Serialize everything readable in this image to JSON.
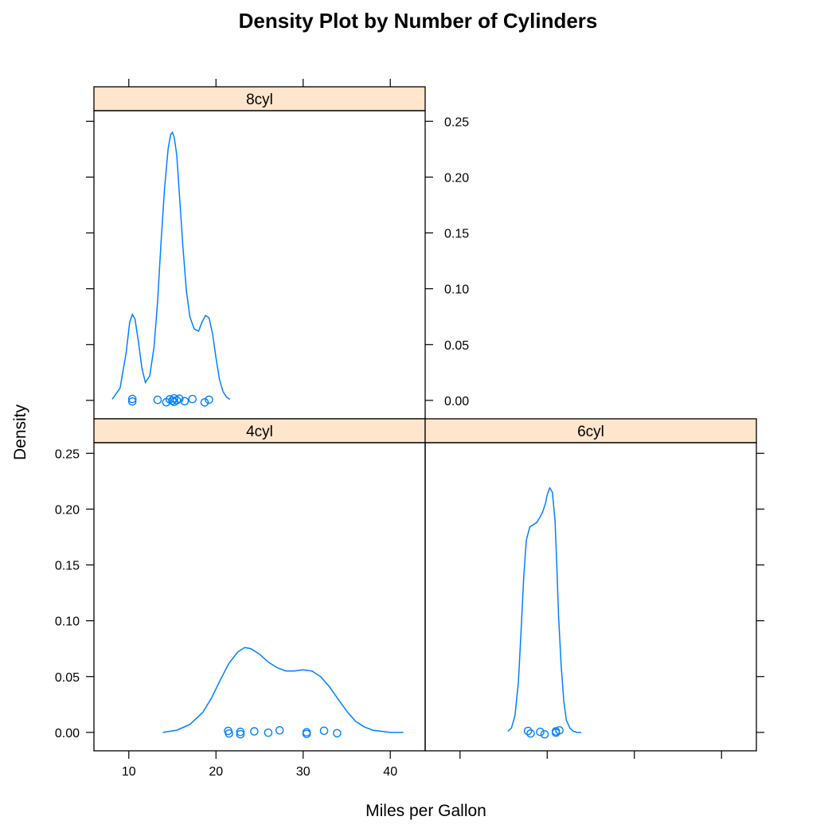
{
  "chart_data": {
    "type": "line",
    "title": "Density Plot by Number of Cylinders",
    "xlabel": "Miles per Gallon",
    "ylabel": "Density",
    "xlim": [
      6,
      44
    ],
    "ylim": [
      -0.0165,
      0.2595
    ],
    "x_ticks": [
      10,
      20,
      30,
      40
    ],
    "y_ticks": [
      0.0,
      0.05,
      0.1,
      0.15,
      0.2,
      0.25
    ],
    "y_tick_labels": [
      "0.00",
      "0.05",
      "0.10",
      "0.15",
      "0.20",
      "0.25"
    ],
    "x_tick_labels": [
      "10",
      "20",
      "30",
      "40"
    ],
    "line_color": "#0080ff",
    "strip_color": "#ffe5cc",
    "panels": [
      {
        "label": "8cyl",
        "density": {
          "x": [
            8.1,
            9.0,
            9.7,
            10.1,
            10.4,
            10.7,
            11.1,
            11.5,
            11.9,
            12.4,
            12.9,
            13.3,
            13.7,
            14.1,
            14.5,
            14.8,
            15.0,
            15.2,
            15.5,
            15.8,
            16.2,
            16.6,
            17.0,
            17.5,
            18.0,
            18.4,
            18.8,
            19.2,
            19.6,
            20.0,
            20.4,
            20.8,
            21.2,
            21.6
          ],
          "y": [
            0.001,
            0.011,
            0.043,
            0.07,
            0.077,
            0.073,
            0.053,
            0.029,
            0.016,
            0.022,
            0.048,
            0.088,
            0.142,
            0.19,
            0.225,
            0.238,
            0.24,
            0.236,
            0.22,
            0.185,
            0.138,
            0.099,
            0.075,
            0.064,
            0.062,
            0.07,
            0.076,
            0.074,
            0.06,
            0.038,
            0.019,
            0.008,
            0.003,
            0.001
          ]
        },
        "points": [
          10.4,
          10.4,
          13.3,
          14.3,
          14.7,
          15.0,
          15.2,
          15.2,
          15.5,
          15.8,
          16.4,
          17.3,
          18.7,
          19.2
        ]
      },
      {
        "label": "4cyl",
        "density": {
          "x": [
            13.9,
            15.5,
            17.0,
            18.5,
            19.5,
            20.5,
            21.5,
            22.5,
            23.3,
            24.0,
            25.0,
            26.0,
            27.0,
            28.0,
            29.0,
            30.0,
            31.0,
            32.0,
            33.0,
            34.0,
            35.0,
            36.0,
            37.0,
            38.0,
            39.0,
            40.0,
            41.5
          ],
          "y": [
            0.0,
            0.002,
            0.007,
            0.018,
            0.031,
            0.047,
            0.062,
            0.072,
            0.076,
            0.075,
            0.07,
            0.063,
            0.058,
            0.055,
            0.055,
            0.056,
            0.055,
            0.05,
            0.041,
            0.03,
            0.019,
            0.01,
            0.005,
            0.002,
            0.001,
            0.0,
            0.0
          ]
        },
        "points": [
          21.4,
          21.5,
          22.8,
          22.8,
          24.4,
          26.0,
          27.3,
          30.4,
          30.4,
          32.4,
          33.9
        ]
      },
      {
        "label": "6cyl",
        "density": {
          "x": [
            15.5,
            15.9,
            16.3,
            16.7,
            17.0,
            17.3,
            17.6,
            18.0,
            18.4,
            18.8,
            19.2,
            19.5,
            19.8,
            20.0,
            20.3,
            20.6,
            20.9,
            21.1,
            21.3,
            21.6,
            21.9,
            22.2,
            22.6,
            23.0,
            23.4,
            23.9
          ],
          "y": [
            0.001,
            0.004,
            0.015,
            0.045,
            0.09,
            0.138,
            0.172,
            0.184,
            0.186,
            0.188,
            0.193,
            0.198,
            0.205,
            0.213,
            0.219,
            0.215,
            0.19,
            0.15,
            0.105,
            0.06,
            0.028,
            0.011,
            0.004,
            0.001,
            0.0,
            0.0
          ]
        },
        "points": [
          17.8,
          18.1,
          19.2,
          19.7,
          21.0,
          21.0,
          21.4
        ]
      }
    ]
  }
}
